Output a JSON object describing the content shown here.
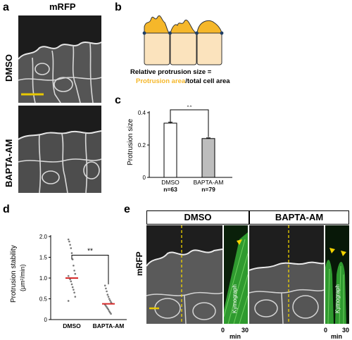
{
  "panel_a": {
    "letter": "a",
    "channel": "mRFP",
    "row_labels": [
      "DMSO",
      "BAPTA-AM"
    ]
  },
  "panel_b": {
    "letter": "b",
    "formula_line1": "Relative protrusion size =",
    "formula_highlight": "Protrusion area",
    "formula_rest": "/total cell area",
    "colors": {
      "protrusion": "#f5b72a",
      "cell": "#fbe3bd",
      "outline": "#333333",
      "junction": "#1f3f66"
    }
  },
  "panel_c": {
    "letter": "c",
    "significance": "**",
    "chart_data": {
      "type": "bar",
      "categories": [
        "DMSO",
        "BAPTA-AM"
      ],
      "sample_sizes": [
        "n=63",
        "n=79"
      ],
      "values": [
        0.335,
        0.24
      ],
      "errors": [
        0.006,
        0.004
      ],
      "ylabel": "Protrusion size",
      "ylim": [
        0,
        0.4
      ],
      "yticks": [
        0,
        0.2,
        0.4
      ],
      "bar_colors": [
        "#ffffff",
        "#bdbdbd"
      ]
    }
  },
  "panel_d": {
    "letter": "d",
    "significance": "**",
    "chart_data": {
      "type": "scatter",
      "categories": [
        "DMSO",
        "BAPTA-AM"
      ],
      "ylabel": "Protrusion stability",
      "yunit": "(μm²/min)",
      "ylim": [
        0,
        2.0
      ],
      "yticks": [
        0,
        0.5,
        1.0,
        1.5,
        2.0
      ],
      "ytick_labels": [
        "0",
        "0.5",
        "1.0",
        "1.5",
        "2.0"
      ],
      "means": [
        1.0,
        0.38
      ],
      "points": [
        [
          1.93,
          1.88,
          1.8,
          1.72,
          1.6,
          1.45,
          1.3,
          1.18,
          1.1,
          1.05,
          1.0,
          0.97,
          0.92,
          0.85,
          0.78,
          0.72,
          0.65,
          0.55,
          0.45
        ],
        [
          0.82,
          0.75,
          0.68,
          0.6,
          0.55,
          0.5,
          0.46,
          0.42,
          0.39,
          0.36,
          0.33,
          0.3,
          0.27,
          0.24,
          0.2,
          0.17,
          0.14
        ]
      ],
      "mean_color": "#d62a2a"
    }
  },
  "panel_e": {
    "letter": "e",
    "channel": "mRFP",
    "columns": [
      "DMSO",
      "BAPTA-AM"
    ],
    "kymograph_label": "Kymograph",
    "time_axis": {
      "start": "0",
      "end": "30",
      "unit": "min"
    }
  }
}
